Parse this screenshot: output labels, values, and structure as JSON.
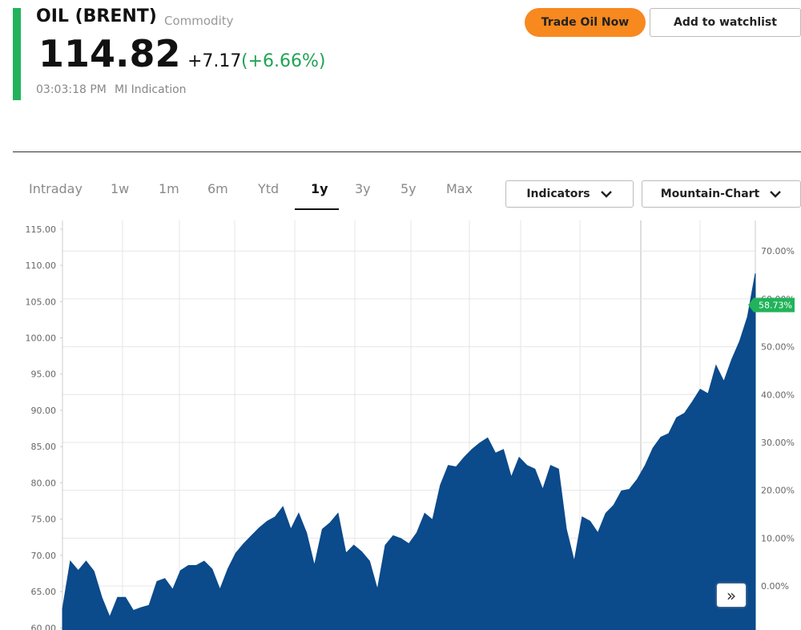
{
  "header": {
    "title": "OIL (BRENT)",
    "category": "Commodity",
    "price": "114.82",
    "change": "+7.17",
    "change_percent": "(+6.66%)",
    "time": "03:03:18 PM",
    "source": "MI Indication"
  },
  "buttons": {
    "trade": "Trade Oil Now",
    "watchlist": "Add to watchlist"
  },
  "tabs": [
    "Intraday",
    "1w",
    "1m",
    "6m",
    "Ytd",
    "1y",
    "3y",
    "5y",
    "Max"
  ],
  "dropdowns": [
    "Indicators",
    "Mountain-Chart"
  ],
  "chart_data": {
    "type": "area",
    "color": "#0b4a8b",
    "values": [
      62.6,
      69.2,
      67.9,
      69.2,
      67.8,
      64.2,
      61.5,
      64.2,
      64.2,
      62.4,
      62.8,
      63.1,
      66.4,
      66.8,
      65.3,
      67.9,
      68.6,
      68.6,
      69.2,
      68.1,
      65.3,
      68.1,
      70.3,
      71.6,
      72.7,
      73.8,
      74.7,
      75.3,
      76.7,
      73.6,
      75.8,
      73.1,
      68.6,
      73.6,
      74.5,
      75.8,
      70.3,
      71.4,
      70.5,
      69.2,
      65.3,
      71.4,
      72.7,
      72.3,
      71.6,
      73.1,
      75.8,
      74.9,
      79.7,
      82.4,
      82.2,
      83.5,
      84.6,
      85.5,
      86.2,
      84.1,
      84.6,
      80.8,
      83.5,
      82.4,
      81.9,
      79.1,
      82.4,
      81.9,
      73.6,
      69.2,
      75.3,
      74.7,
      73.1,
      75.8,
      76.9,
      78.9,
      79.1,
      80.5,
      82.4,
      84.8,
      86.3,
      86.8,
      89.0,
      89.6,
      91.2,
      92.9,
      92.3,
      96.2,
      94.0,
      97.0,
      99.5,
      102.9,
      108.9
    ],
    "ylim": [
      59.7,
      116.2
    ],
    "yticks": [
      {
        "value": 115,
        "label": "115.00"
      },
      {
        "value": 110,
        "label": "110.00"
      },
      {
        "value": 105,
        "label": "105.00"
      },
      {
        "value": 100,
        "label": "100.00"
      },
      {
        "value": 95,
        "label": "95.00"
      },
      {
        "value": 90,
        "label": "90.00"
      },
      {
        "value": 85,
        "label": "85.00"
      },
      {
        "value": 80,
        "label": "80.00"
      },
      {
        "value": 75,
        "label": "75.00"
      },
      {
        "value": 70,
        "label": "70.00"
      },
      {
        "value": 65,
        "label": "65.00"
      },
      {
        "value": 60,
        "label": "60.00"
      }
    ],
    "y2lim": [
      -9.2,
      76.4
    ],
    "y2ticks": [
      {
        "value": 70,
        "label": "70.00%"
      },
      {
        "value": 60,
        "label": "60.00%"
      },
      {
        "value": 50,
        "label": "50.00%"
      },
      {
        "value": 40,
        "label": "40.00%"
      },
      {
        "value": 30,
        "label": "30.00%"
      },
      {
        "value": 20,
        "label": "20.00%"
      },
      {
        "value": 10,
        "label": "10.00%"
      },
      {
        "value": 0,
        "label": "0.00%"
      }
    ],
    "marker": {
      "value": 58.73,
      "label": "58.73%"
    },
    "grid": true
  }
}
